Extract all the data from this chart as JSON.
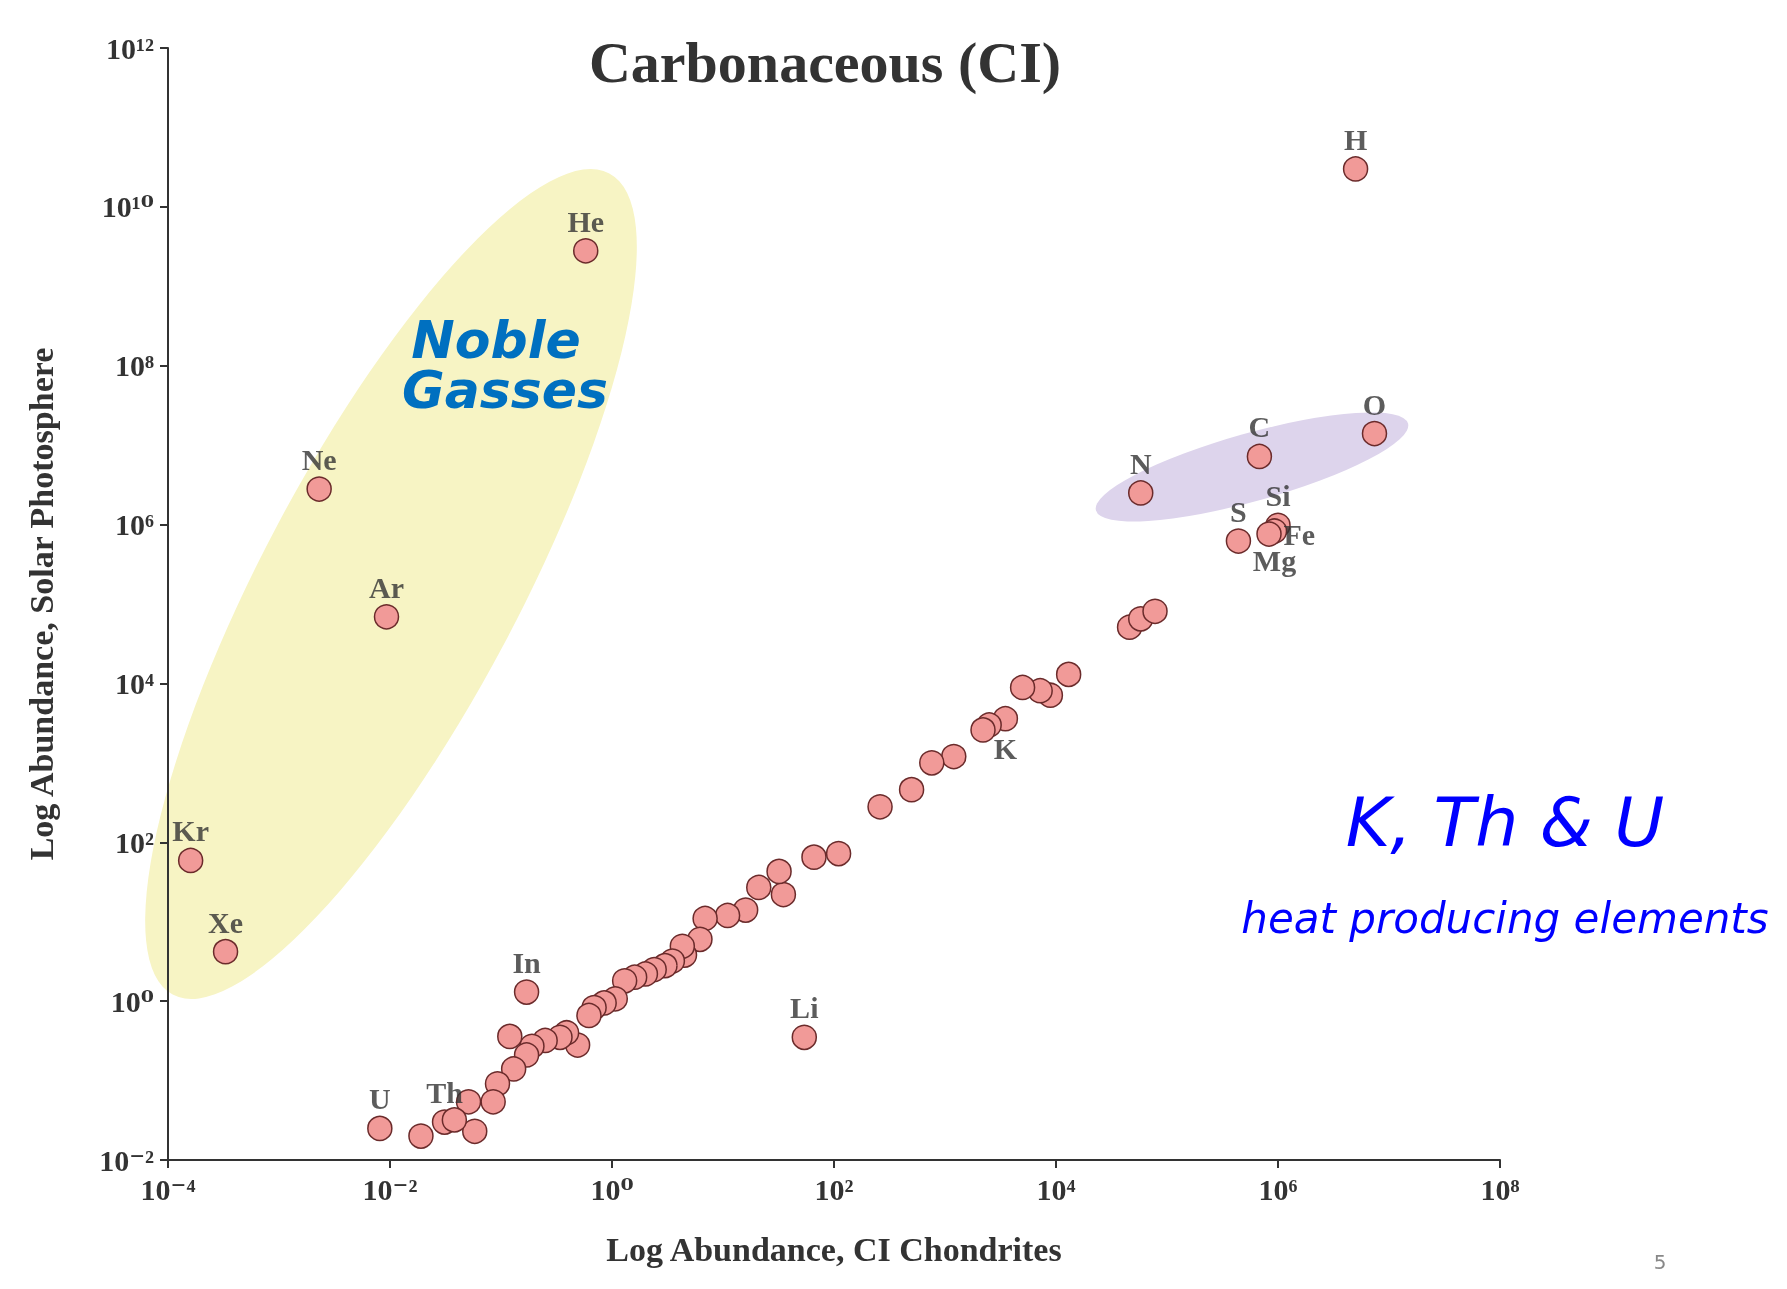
{
  "chart_data": {
    "type": "scatter",
    "title": "Carbonaceous (CI)",
    "xlabel": "Log Abundance, CI Chondrites",
    "ylabel": "Log Abundance, Solar Photosphere",
    "log": "xy",
    "grid": false,
    "marker": "circle",
    "xlim": [
      0.0001,
      100000000
    ],
    "ylim": [
      0.01,
      1000000000000
    ],
    "xticks": [
      {
        "value": 0.0001,
        "label": "10⁻⁴"
      },
      {
        "value": 0.01,
        "label": "10⁻²"
      },
      {
        "value": 1,
        "label": "10⁰"
      },
      {
        "value": 100,
        "label": "10²"
      },
      {
        "value": 10000,
        "label": "10⁴"
      },
      {
        "value": 1000000,
        "label": "10⁶"
      },
      {
        "value": 100000000,
        "label": "10⁸"
      }
    ],
    "yticks": [
      {
        "value": 0.01,
        "label": "10⁻²"
      },
      {
        "value": 1,
        "label": "10⁰"
      },
      {
        "value": 100,
        "label": "10²"
      },
      {
        "value": 10000,
        "label": "10⁴"
      },
      {
        "value": 1000000,
        "label": "10⁶"
      },
      {
        "value": 100000000,
        "label": "10⁸"
      },
      {
        "value": 10000000000,
        "label": "10¹⁰"
      },
      {
        "value": 1000000000000,
        "label": "10¹²"
      }
    ],
    "series": [
      {
        "color": "#f19a98",
        "x": [
          5000000.0,
          0.58,
          0.0023,
          0.0093,
          0.00016,
          0.00033,
          7400000.0,
          680000.0,
          58000.0,
          1000000.0,
          930000.0,
          830000.0,
          440000.0,
          0.17,
          54,
          0.0081,
          0.031,
          3500.0,
          46000.0,
          58000.0,
          78000.0,
          13000.0,
          8900.0,
          7200.0,
          5000.0,
          2500.0,
          2200.0,
          1200.0,
          760,
          500,
          260,
          110,
          66,
          35,
          32,
          21,
          16,
          11,
          6.9,
          6.2,
          4.5,
          4.3,
          3.5,
          3.0,
          2.4,
          2.0,
          1.6,
          1.3,
          1.07,
          0.85,
          0.69,
          0.62,
          0.49,
          0.39,
          0.34,
          0.25,
          0.19,
          0.17,
          0.13,
          0.12,
          0.093,
          0.085,
          0.051,
          0.058,
          0.038,
          0.019
        ],
        "values": [
          30000000000.0,
          2800000000.0,
          2800000.0,
          69000.0,
          59,
          4.2,
          14000000.0,
          7200000.0,
          2500000.0,
          980000.0,
          830000.0,
          760000.0,
          620000.0,
          1.3,
          0.35,
          0.025,
          0.03,
          3600.0,
          51000.0,
          65000.0,
          81000.0,
          13000.0,
          7100.0,
          8100.0,
          8900.0,
          3000.0,
          2600.0,
          1200.0,
          1000.0,
          460,
          280,
          72,
          65,
          22,
          43,
          27,
          14,
          12,
          11,
          6.0,
          3.8,
          4.9,
          3.2,
          2.8,
          2.5,
          2.2,
          2.0,
          1.8,
          1.07,
          0.95,
          0.83,
          0.66,
          0.28,
          0.4,
          0.35,
          0.32,
          0.27,
          0.21,
          0.14,
          0.36,
          0.091,
          0.054,
          0.054,
          0.023,
          0.032,
          0.02
        ]
      }
    ],
    "annotations": [
      {
        "text": "H",
        "x": 5000000.0,
        "y": 30000000000.0
      },
      {
        "text": "He",
        "x": 0.58,
        "y": 2800000000.0
      },
      {
        "text": "Ne",
        "x": 0.0023,
        "y": 2800000.0
      },
      {
        "text": "Ar",
        "x": 0.0093,
        "y": 69000.0
      },
      {
        "text": "Kr",
        "x": 0.00016,
        "y": 59
      },
      {
        "text": "Xe",
        "x": 0.00033,
        "y": 4.2
      },
      {
        "text": "O",
        "x": 7400000.0,
        "y": 14000000.0
      },
      {
        "text": "C",
        "x": 680000.0,
        "y": 7200000.0
      },
      {
        "text": "N",
        "x": 58000.0,
        "y": 2500000.0
      },
      {
        "text": "Si",
        "x": 1000000.0,
        "y": 980000.0
      },
      {
        "text": "Mg",
        "x": 930000.0,
        "y": 830000.0
      },
      {
        "text": "Fe",
        "x": 830000.0,
        "y": 760000.0
      },
      {
        "text": "S",
        "x": 440000.0,
        "y": 620000.0
      },
      {
        "text": "In",
        "x": 0.17,
        "y": 1.3
      },
      {
        "text": "Li",
        "x": 54,
        "y": 0.35
      },
      {
        "text": "U",
        "x": 0.0081,
        "y": 0.025
      },
      {
        "text": "Th",
        "x": 0.031,
        "y": 0.03
      },
      {
        "text": "K",
        "x": 3500.0,
        "y": 3600.0
      },
      "Noble Gasses",
      "K, Th & U",
      "heat producing elements",
      "5"
    ]
  }
}
